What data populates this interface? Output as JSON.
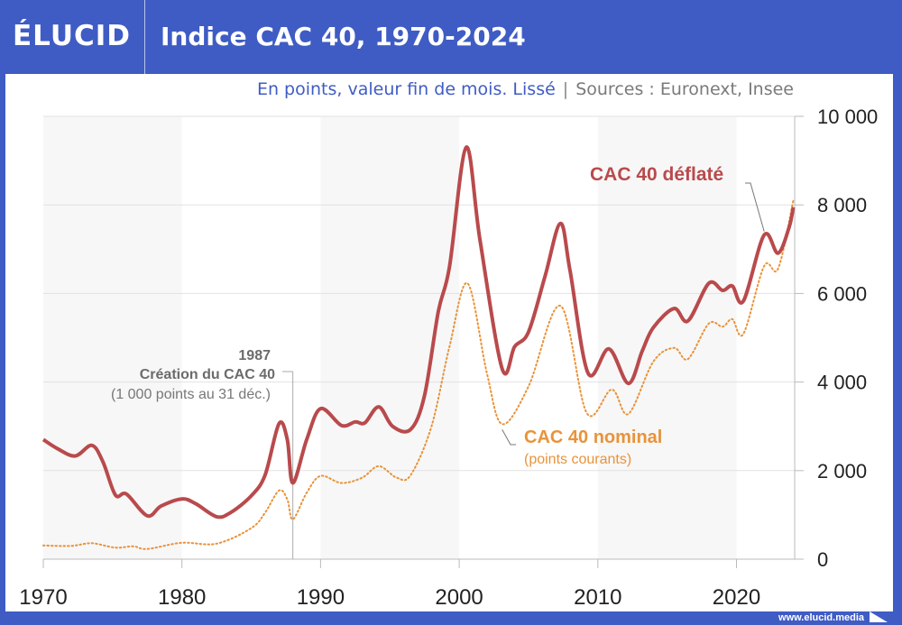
{
  "brand": "ÉLUCID",
  "header": {
    "title": "Indice CAC 40, 1970-2024"
  },
  "subtitle": {
    "main": "En points, valeur fin de mois. Lissé",
    "separator": "|",
    "sources": "Sources : Euronext, Insee"
  },
  "footer": {
    "url": "www.elucid.media"
  },
  "chart_data": {
    "type": "line",
    "title": "Indice CAC 40, 1970-2024",
    "subtitle": "En points, valeur fin de mois. Lissé",
    "source": "Sources : Euronext, Insee",
    "xlabel": "",
    "ylabel": "",
    "xlim": [
      1970,
      2024.2
    ],
    "ylim": [
      0,
      10000
    ],
    "x_ticks": [
      1970,
      1980,
      1990,
      2000,
      2010,
      2020
    ],
    "x_tick_labels": [
      "1970",
      "1980",
      "1990",
      "2000",
      "2010",
      "2020"
    ],
    "y_ticks": [
      0,
      2000,
      4000,
      6000,
      8000,
      10000
    ],
    "y_tick_labels": [
      "0",
      "2 000",
      "4 000",
      "6 000",
      "8 000",
      "10 000"
    ],
    "grid": true,
    "shaded_decades": [
      [
        1970,
        1980
      ],
      [
        1990,
        2000
      ],
      [
        2010,
        2020
      ]
    ],
    "colors": {
      "deflated": "#b94a4c",
      "nominal": "#e8933a",
      "brand": "#3f5cc4"
    },
    "series": [
      {
        "name": "CAC 40 déflaté",
        "style": "solid",
        "points": [
          [
            1970,
            2700
          ],
          [
            1971,
            2500
          ],
          [
            1972.3,
            2330
          ],
          [
            1973.5,
            2570
          ],
          [
            1974.3,
            2200
          ],
          [
            1975.2,
            1450
          ],
          [
            1976,
            1470
          ],
          [
            1977.5,
            980
          ],
          [
            1978.5,
            1200
          ],
          [
            1980,
            1360
          ],
          [
            1981,
            1250
          ],
          [
            1982.5,
            960
          ],
          [
            1983.5,
            1050
          ],
          [
            1985,
            1430
          ],
          [
            1986,
            1900
          ],
          [
            1987,
            3060
          ],
          [
            1987.6,
            2700
          ],
          [
            1988,
            1720
          ],
          [
            1989,
            2700
          ],
          [
            1990,
            3400
          ],
          [
            1991.5,
            3020
          ],
          [
            1992.5,
            3100
          ],
          [
            1993.2,
            3080
          ],
          [
            1994.2,
            3440
          ],
          [
            1995.2,
            3000
          ],
          [
            1996.5,
            2930
          ],
          [
            1997.5,
            3700
          ],
          [
            1998.5,
            5600
          ],
          [
            1999.3,
            6600
          ],
          [
            2000.5,
            9300
          ],
          [
            2001.5,
            7200
          ],
          [
            2003.1,
            4300
          ],
          [
            2004,
            4800
          ],
          [
            2005,
            5130
          ],
          [
            2006.2,
            6400
          ],
          [
            2007.3,
            7580
          ],
          [
            2008,
            6500
          ],
          [
            2009.3,
            4200
          ],
          [
            2010.8,
            4750
          ],
          [
            2012.2,
            3970
          ],
          [
            2013.2,
            4700
          ],
          [
            2014,
            5230
          ],
          [
            2015.5,
            5660
          ],
          [
            2016.5,
            5380
          ],
          [
            2018,
            6230
          ],
          [
            2019,
            6070
          ],
          [
            2019.7,
            6170
          ],
          [
            2020.5,
            5830
          ],
          [
            2022,
            7320
          ],
          [
            2023,
            6910
          ],
          [
            2023.8,
            7500
          ],
          [
            2024.1,
            7950
          ]
        ]
      },
      {
        "name": "CAC 40 nominal",
        "sublabel": "(points courants)",
        "style": "dotted",
        "points": [
          [
            1970,
            310
          ],
          [
            1972,
            300
          ],
          [
            1973.5,
            360
          ],
          [
            1975.2,
            260
          ],
          [
            1976.5,
            290
          ],
          [
            1977.5,
            230
          ],
          [
            1980,
            370
          ],
          [
            1982.5,
            350
          ],
          [
            1985,
            700
          ],
          [
            1986,
            1050
          ],
          [
            1987,
            1550
          ],
          [
            1987.6,
            1350
          ],
          [
            1988,
            900
          ],
          [
            1989,
            1500
          ],
          [
            1990,
            1880
          ],
          [
            1991.5,
            1720
          ],
          [
            1993,
            1840
          ],
          [
            1994.2,
            2100
          ],
          [
            1995.5,
            1840
          ],
          [
            1996.5,
            1900
          ],
          [
            1998,
            3000
          ],
          [
            1999.3,
            4800
          ],
          [
            2000.6,
            6230
          ],
          [
            2002,
            4200
          ],
          [
            2003.1,
            3050
          ],
          [
            2005,
            3900
          ],
          [
            2007.3,
            5720
          ],
          [
            2009.2,
            3300
          ],
          [
            2011,
            3830
          ],
          [
            2012.2,
            3280
          ],
          [
            2014,
            4460
          ],
          [
            2015.5,
            4770
          ],
          [
            2016.5,
            4520
          ],
          [
            2018,
            5320
          ],
          [
            2019,
            5250
          ],
          [
            2019.7,
            5420
          ],
          [
            2020.5,
            5090
          ],
          [
            2022,
            6620
          ],
          [
            2023,
            6560
          ],
          [
            2024.1,
            8100
          ]
        ]
      }
    ],
    "annotations": [
      {
        "year": "1987",
        "title": "Création du CAC 40",
        "note": "(1 000 points au 31 déc.)",
        "x": 1988
      },
      {
        "label": "CAC 40 déflaté",
        "series": "CAC 40 déflaté",
        "target": [
          2022,
          7320
        ]
      },
      {
        "label": "CAC 40 nominal",
        "sublabel": "(points courants)",
        "series": "CAC 40 nominal",
        "target": [
          2003.1,
          3050
        ]
      }
    ],
    "legend": "inline-labels"
  }
}
